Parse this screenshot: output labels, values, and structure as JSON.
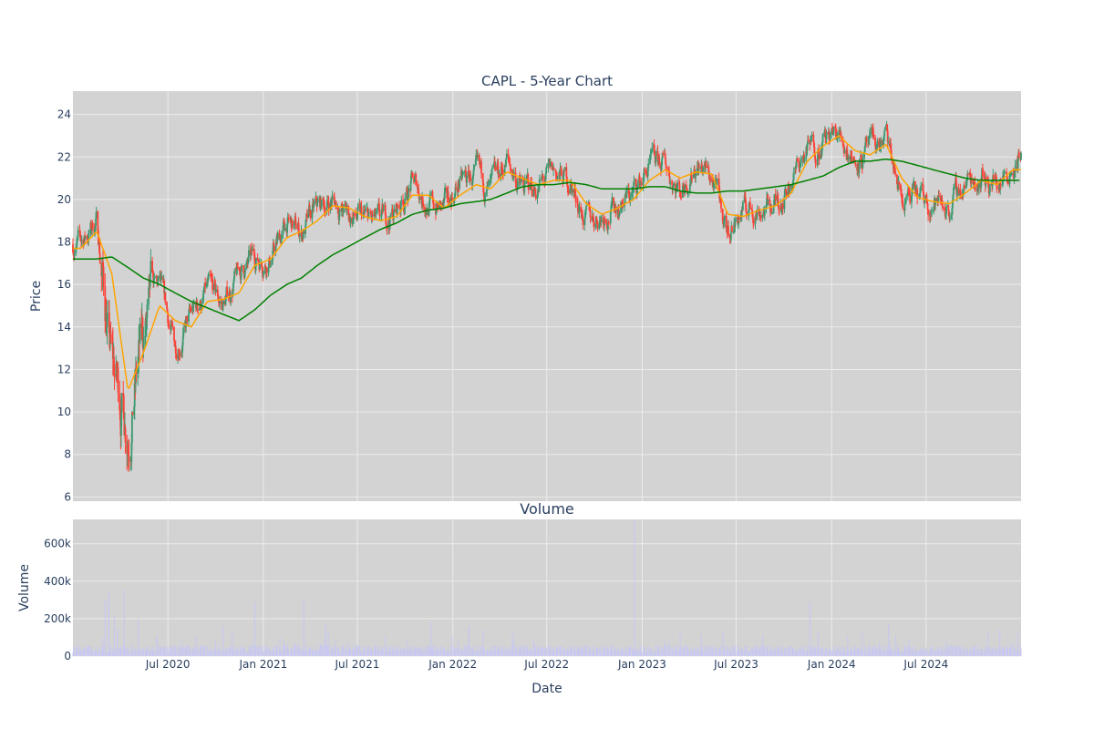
{
  "colors": {
    "plot_bg": "#d3d3d3",
    "grid": "#ebebeb",
    "increasing": "#3d9970",
    "decreasing": "#ff4136",
    "ma_short": "#ffa500",
    "ma_long": "#008000",
    "volume": "#c8c8f0",
    "text": "#2a3f5f"
  },
  "chart_data": [
    {
      "type": "candlestick",
      "title": "CAPL - 5-Year Chart",
      "ylabel": "Price",
      "ylim": [
        5.8,
        25.1
      ],
      "xlim": [
        "2019-12-31",
        "2024-12-31"
      ],
      "yticks": [
        6,
        8,
        10,
        12,
        14,
        16,
        18,
        20,
        22,
        24
      ],
      "grid": true,
      "candles": {
        "months": [
          "2020-01",
          "2020-02",
          "2020-03",
          "2020-04",
          "2020-05",
          "2020-06",
          "2020-07",
          "2020-08",
          "2020-09",
          "2020-10",
          "2020-11",
          "2020-12",
          "2021-01",
          "2021-02",
          "2021-03",
          "2021-04",
          "2021-05",
          "2021-06",
          "2021-07",
          "2021-08",
          "2021-09",
          "2021-10",
          "2021-11",
          "2021-12",
          "2022-01",
          "2022-02",
          "2022-03",
          "2022-04",
          "2022-05",
          "2022-06",
          "2022-07",
          "2022-08",
          "2022-09",
          "2022-10",
          "2022-11",
          "2022-12",
          "2023-01",
          "2023-02",
          "2023-03",
          "2023-04",
          "2023-05",
          "2023-06",
          "2023-07",
          "2023-08",
          "2023-09",
          "2023-10",
          "2023-11",
          "2023-12",
          "2024-01",
          "2024-02",
          "2024-03",
          "2024-04",
          "2024-05",
          "2024-06",
          "2024-07",
          "2024-08",
          "2024-09",
          "2024-10",
          "2024-11",
          "2024-12"
        ],
        "close": [
          17.9,
          19.0,
          12.0,
          9.5,
          13.5,
          15.8,
          13.0,
          14.5,
          15.7,
          15.0,
          16.5,
          17.2,
          17.3,
          18.8,
          18.4,
          19.5,
          20.0,
          19.2,
          19.0,
          18.8,
          19.5,
          20.8,
          19.8,
          19.5,
          20.8,
          21.0,
          20.3,
          21.8,
          20.5,
          20.6,
          21.2,
          20.8,
          19.0,
          19.3,
          19.8,
          20.3,
          21.5,
          21.6,
          20.5,
          21.8,
          21.0,
          18.5,
          19.5,
          19.6,
          19.8,
          21.0,
          22.3,
          22.8,
          23.0,
          22.0,
          22.3,
          22.8,
          20.0,
          20.0,
          19.9,
          19.7,
          20.8,
          21.2,
          20.8,
          21.8
        ]
      },
      "series": [
        {
          "kind": "moving-average-short",
          "values": [
            17.7,
            18.5,
            16.5,
            11.0,
            12.8,
            15.0,
            14.3,
            14.0,
            15.2,
            15.3,
            15.6,
            16.9,
            17.2,
            18.2,
            18.5,
            19.0,
            19.7,
            19.6,
            19.2,
            19.0,
            19.2,
            20.2,
            20.2,
            19.6,
            20.2,
            20.7,
            20.5,
            21.3,
            21.0,
            20.7,
            20.9,
            20.9,
            19.8,
            19.3,
            19.6,
            20.0,
            20.9,
            21.4,
            21.0,
            21.3,
            21.2,
            19.3,
            19.2,
            19.5,
            19.7,
            20.3,
            21.8,
            22.5,
            23.0,
            22.3,
            22.1,
            22.6,
            21.0,
            20.1,
            19.9,
            19.8,
            20.3,
            20.9,
            20.7,
            21.4
          ]
        },
        {
          "kind": "moving-average-long",
          "values": [
            17.2,
            17.2,
            17.3,
            16.8,
            16.3,
            16.0,
            15.6,
            15.2,
            14.9,
            14.6,
            14.3,
            14.8,
            15.5,
            16.0,
            16.3,
            16.9,
            17.4,
            17.8,
            18.2,
            18.6,
            18.9,
            19.3,
            19.5,
            19.6,
            19.8,
            19.9,
            20.0,
            20.3,
            20.6,
            20.7,
            20.7,
            20.8,
            20.7,
            20.5,
            20.5,
            20.5,
            20.6,
            20.6,
            20.4,
            20.3,
            20.3,
            20.4,
            20.4,
            20.5,
            20.6,
            20.7,
            20.9,
            21.1,
            21.5,
            21.8,
            21.8,
            21.9,
            21.8,
            21.6,
            21.4,
            21.2,
            21.0,
            20.9,
            20.9,
            20.9
          ]
        }
      ]
    },
    {
      "type": "bar",
      "title": "Volume",
      "ylabel": "Volume",
      "xlabel": "Date",
      "ylim": [
        0,
        730000
      ],
      "yticks": [
        0,
        200000,
        400000,
        600000
      ],
      "ytick_labels": [
        "0",
        "200k",
        "400k",
        "600k"
      ],
      "xticks": [
        "2020-07-01",
        "2021-01-01",
        "2021-07-01",
        "2022-01-01",
        "2022-07-01",
        "2023-01-01",
        "2023-07-01",
        "2024-01-01",
        "2024-07-01"
      ],
      "xtick_labels": [
        "Jul 2020",
        "Jan 2021",
        "Jul 2021",
        "Jan 2022",
        "Jul 2022",
        "Jan 2023",
        "Jul 2023",
        "Jan 2024",
        "Jul 2024"
      ],
      "grid": true,
      "spikes": [
        {
          "date": "2020-03-02",
          "value": 300000
        },
        {
          "date": "2020-03-09",
          "value": 340000
        },
        {
          "date": "2020-03-20",
          "value": 220000
        },
        {
          "date": "2020-04-08",
          "value": 350000
        },
        {
          "date": "2020-05-05",
          "value": 200000
        },
        {
          "date": "2020-10-15",
          "value": 160000
        },
        {
          "date": "2020-12-15",
          "value": 290000
        },
        {
          "date": "2021-03-20",
          "value": 310000
        },
        {
          "date": "2021-05-01",
          "value": 170000
        },
        {
          "date": "2021-11-20",
          "value": 180000
        },
        {
          "date": "2022-02-01",
          "value": 160000
        },
        {
          "date": "2022-12-17",
          "value": 720000
        },
        {
          "date": "2023-11-20",
          "value": 290000
        },
        {
          "date": "2024-04-20",
          "value": 170000
        },
        {
          "date": "2024-11-20",
          "value": 140000
        }
      ]
    }
  ]
}
